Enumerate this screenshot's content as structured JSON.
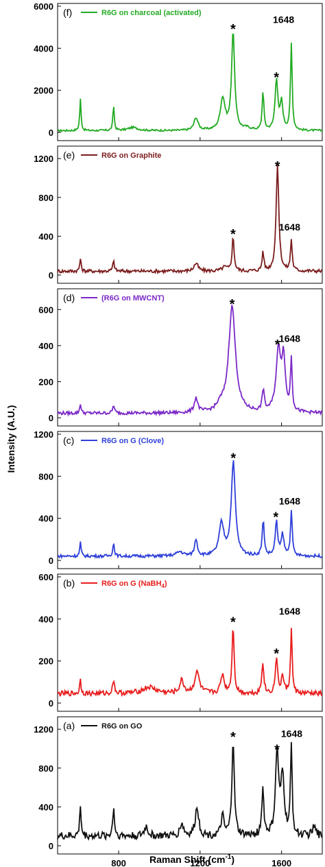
{
  "figure": {
    "ylabel": "Intensity (A.U.)",
    "xlabel_text": "Raman Shift (cm",
    "xlabel_sup": "-1",
    "xlabel_close": ")",
    "xticks": [
      800,
      1200,
      1600
    ],
    "xlim": [
      500,
      1800
    ]
  },
  "chart_data": [
    {
      "panel": "(f)",
      "type": "line",
      "legend": "R6G on charcoal (activated)",
      "color": "#22aa22",
      "ylim": [
        0,
        6000
      ],
      "yticks": [
        0,
        2000,
        4000,
        6000
      ],
      "baseline": 80,
      "noise": 45,
      "peaks": [
        [
          612,
          1500,
          4
        ],
        [
          775,
          1200,
          4
        ],
        [
          1180,
          600,
          12
        ],
        [
          1311,
          1500,
          14
        ],
        [
          1362,
          4700,
          9
        ],
        [
          1509,
          1850,
          5
        ],
        [
          1575,
          2400,
          8
        ],
        [
          1600,
          1300,
          8
        ],
        [
          1648,
          4100,
          5
        ],
        [
          1430,
          100,
          20
        ],
        [
          870,
          150,
          30
        ]
      ],
      "annotations": [
        {
          "text": "*",
          "x": 1362,
          "y": 4950
        },
        {
          "text": "*",
          "x": 1575,
          "y": 2650
        },
        {
          "text": "1648",
          "x": 1610,
          "y": 5200
        }
      ]
    },
    {
      "panel": "(e)",
      "type": "line",
      "legend": "R6G on Graphite",
      "color": "#7b1c1c",
      "ylim": [
        0,
        1300
      ],
      "yticks": [
        0,
        400,
        800,
        1200
      ],
      "baseline": 40,
      "noise": 18,
      "peaks": [
        [
          612,
          130,
          4
        ],
        [
          775,
          100,
          5
        ],
        [
          1180,
          80,
          12
        ],
        [
          1362,
          350,
          6
        ],
        [
          1509,
          200,
          5
        ],
        [
          1580,
          1080,
          8
        ],
        [
          1648,
          320,
          5
        ],
        [
          1320,
          40,
          15
        ]
      ],
      "annotations": [
        {
          "text": "*",
          "x": 1362,
          "y": 430
        },
        {
          "text": "*",
          "x": 1580,
          "y": 1130
        },
        {
          "text": "1648",
          "x": 1640,
          "y": 460
        }
      ]
    },
    {
      "panel": "(d)",
      "type": "line",
      "legend": "(R6G on MWCNT)",
      "color": "#7a28c8",
      "ylim": [
        0,
        700
      ],
      "yticks": [
        0,
        200,
        400,
        600
      ],
      "baseline": 25,
      "noise": 9,
      "peaks": [
        [
          612,
          55,
          4
        ],
        [
          775,
          45,
          5
        ],
        [
          1180,
          80,
          10
        ],
        [
          1357,
          590,
          20
        ],
        [
          1510,
          120,
          6
        ],
        [
          1585,
          340,
          14
        ],
        [
          1610,
          280,
          10
        ],
        [
          1648,
          290,
          5
        ],
        [
          1300,
          30,
          20
        ]
      ],
      "annotations": [
        {
          "text": "*",
          "x": 1357,
          "y": 635
        },
        {
          "text": "*",
          "x": 1580,
          "y": 410
        },
        {
          "text": "1648",
          "x": 1640,
          "y": 420
        }
      ]
    },
    {
      "panel": "(c)",
      "type": "line",
      "legend": "R6G on G (Clove)",
      "color": "#2d3fd8",
      "ylim": [
        0,
        1200
      ],
      "yticks": [
        0,
        400,
        800,
        1200
      ],
      "baseline": 40,
      "noise": 14,
      "peaks": [
        [
          612,
          130,
          4
        ],
        [
          775,
          120,
          5
        ],
        [
          1180,
          160,
          8
        ],
        [
          1305,
          300,
          14
        ],
        [
          1363,
          890,
          12
        ],
        [
          1510,
          330,
          6
        ],
        [
          1575,
          320,
          7
        ],
        [
          1605,
          200,
          8
        ],
        [
          1648,
          440,
          5
        ],
        [
          1100,
          40,
          20
        ]
      ],
      "annotations": [
        {
          "text": "*",
          "x": 1363,
          "y": 980
        },
        {
          "text": "*",
          "x": 1572,
          "y": 420
        },
        {
          "text": "1648",
          "x": 1640,
          "y": 530
        }
      ]
    },
    {
      "panel": "(b)",
      "type": "line",
      "legend_main": "R6G on G (NaBH",
      "legend_sub": "4",
      "legend_end": ")",
      "color": "#e81c1c",
      "ylim": [
        0,
        600
      ],
      "yticks": [
        0,
        200,
        400,
        600
      ],
      "baseline": 45,
      "noise": 12,
      "peaks": [
        [
          612,
          70,
          4
        ],
        [
          775,
          70,
          5
        ],
        [
          1110,
          60,
          12
        ],
        [
          1185,
          100,
          14
        ],
        [
          1310,
          90,
          10
        ],
        [
          1362,
          325,
          6
        ],
        [
          1508,
          150,
          6
        ],
        [
          1575,
          175,
          6
        ],
        [
          1605,
          80,
          8
        ],
        [
          1648,
          300,
          5
        ],
        [
          950,
          30,
          40
        ]
      ],
      "annotations": [
        {
          "text": "*",
          "x": 1362,
          "y": 390
        },
        {
          "text": "*",
          "x": 1575,
          "y": 240
        },
        {
          "text": "1648",
          "x": 1640,
          "y": 420
        }
      ]
    },
    {
      "panel": "(a)",
      "type": "line",
      "legend": "R6G on GO",
      "color": "#111111",
      "ylim": [
        0,
        1300
      ],
      "yticks": [
        0,
        400,
        800,
        1200
      ],
      "baseline": 100,
      "noise": 40,
      "peaks": [
        [
          612,
          330,
          4
        ],
        [
          775,
          300,
          5
        ],
        [
          935,
          100,
          10
        ],
        [
          1110,
          130,
          10
        ],
        [
          1185,
          300,
          10
        ],
        [
          1310,
          200,
          8
        ],
        [
          1362,
          1000,
          7
        ],
        [
          1508,
          480,
          6
        ],
        [
          1578,
          850,
          9
        ],
        [
          1605,
          600,
          10
        ],
        [
          1648,
          910,
          5
        ],
        [
          1760,
          90,
          10
        ]
      ],
      "annotations": [
        {
          "text": "*",
          "x": 1362,
          "y": 1130
        },
        {
          "text": "*",
          "x": 1578,
          "y": 1000
        },
        {
          "text": "1648",
          "x": 1650,
          "y": 1120
        }
      ]
    }
  ]
}
